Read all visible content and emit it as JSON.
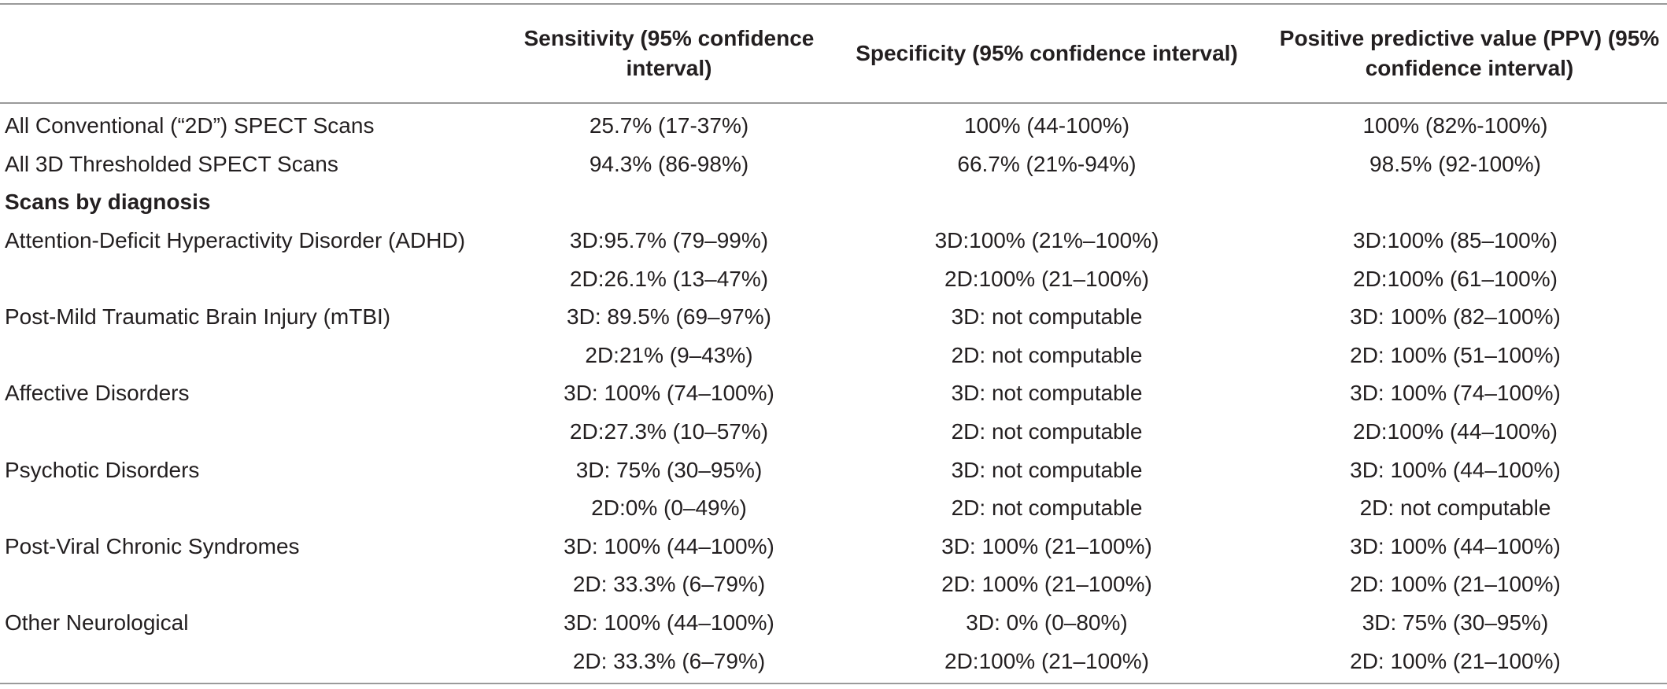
{
  "table": {
    "headers": [
      "",
      "Sensitivity (95% confidence interval)",
      "Specificity (95% confidence interval)",
      "Positive predictive value (PPV) (95% confidence interval)"
    ],
    "overall_rows": [
      {
        "label": "All Conventional (“2D”) SPECT Scans",
        "sensitivity": "25.7% (17-37%)",
        "specificity": "100% (44-100%)",
        "ppv": "100% (82%-100%)"
      },
      {
        "label": "All 3D Thresholded SPECT Scans",
        "sensitivity": "94.3% (86-98%)",
        "specificity": "66.7% (21%-94%)",
        "ppv": "98.5% (92-100%)"
      }
    ],
    "section_label": "Scans by diagnosis",
    "diagnosis_rows": [
      {
        "label": "Attention-Deficit Hyperactivity Disorder (ADHD)",
        "sensitivity": "3D:95.7% (79–99%)",
        "specificity": "3D:100% (21%–100%)",
        "ppv": "3D:100% (85–100%)"
      },
      {
        "label": "",
        "sensitivity": "2D:26.1% (13–47%)",
        "specificity": "2D:100% (21–100%)",
        "ppv": "2D:100% (61–100%)"
      },
      {
        "label": "Post-Mild Traumatic Brain Injury (mTBI)",
        "sensitivity": "3D: 89.5% (69–97%)",
        "specificity": "3D: not computable",
        "ppv": "3D: 100% (82–100%)"
      },
      {
        "label": "",
        "sensitivity": "2D:21% (9–43%)",
        "specificity": "2D: not computable",
        "ppv": "2D: 100% (51–100%)"
      },
      {
        "label": "Affective Disorders",
        "sensitivity": "3D: 100% (74–100%)",
        "specificity": "3D: not computable",
        "ppv": "3D: 100% (74–100%)"
      },
      {
        "label": "",
        "sensitivity": "2D:27.3% (10–57%)",
        "specificity": "2D: not computable",
        "ppv": "2D:100% (44–100%)"
      },
      {
        "label": "Psychotic Disorders",
        "sensitivity": "3D: 75% (30–95%)",
        "specificity": "3D: not computable",
        "ppv": "3D: 100% (44–100%)"
      },
      {
        "label": "",
        "sensitivity": "2D:0% (0–49%)",
        "specificity": "2D: not computable",
        "ppv": "2D: not computable"
      },
      {
        "label": "Post-Viral Chronic Syndromes",
        "sensitivity": "3D: 100% (44–100%)",
        "specificity": "3D: 100% (21–100%)",
        "ppv": "3D: 100% (44–100%)"
      },
      {
        "label": "",
        "sensitivity": "2D: 33.3% (6–79%)",
        "specificity": "2D: 100% (21–100%)",
        "ppv": "2D: 100% (21–100%)"
      },
      {
        "label": "Other Neurological",
        "sensitivity": "3D: 100% (44–100%)",
        "specificity": "3D: 0% (0–80%)",
        "ppv": "3D: 75% (30–95%)"
      },
      {
        "label": "",
        "sensitivity": "2D: 33.3% (6–79%)",
        "specificity": "2D:100% (21–100%)",
        "ppv": "2D: 100% (21–100%)"
      }
    ]
  }
}
